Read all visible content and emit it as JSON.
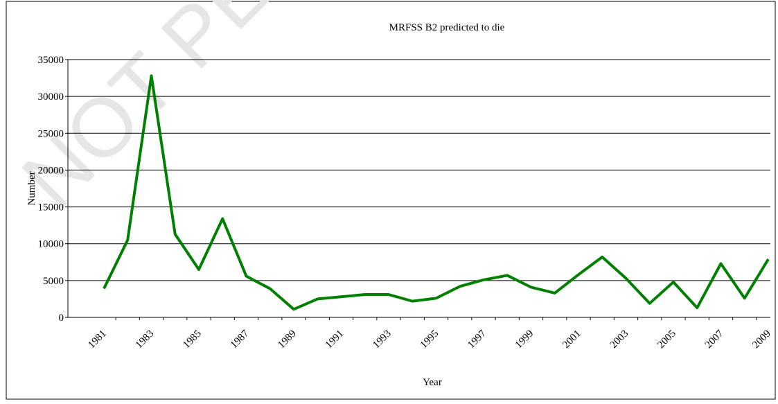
{
  "chart_data": {
    "type": "line",
    "title": "MRFSS B2 predicted to die",
    "xlabel": "Year",
    "ylabel": "Number",
    "watermark": "NOT PE",
    "categories": [
      "1981",
      null,
      "1983",
      null,
      "1985",
      null,
      "1987",
      null,
      "1989",
      null,
      "1991",
      null,
      "1993",
      null,
      "1995",
      null,
      "1997",
      null,
      "1999",
      null,
      "2001",
      null,
      "2003",
      null,
      "2005",
      null,
      "2007",
      null,
      "2009"
    ],
    "series": [
      {
        "color": "#008000",
        "values": [
          3900,
          10500,
          32800,
          11300,
          6500,
          13400,
          5600,
          3900,
          1100,
          2500,
          2800,
          3100,
          3100,
          2200,
          2600,
          4200,
          5100,
          5700,
          4100,
          3300,
          5800,
          8200,
          5300,
          1900,
          4800,
          1300,
          7300,
          2600,
          7900
        ]
      }
    ],
    "ylim": [
      0,
      35000
    ],
    "yticks": [
      0,
      5000,
      10000,
      15000,
      20000,
      25000,
      30000,
      35000
    ],
    "grid": true
  }
}
